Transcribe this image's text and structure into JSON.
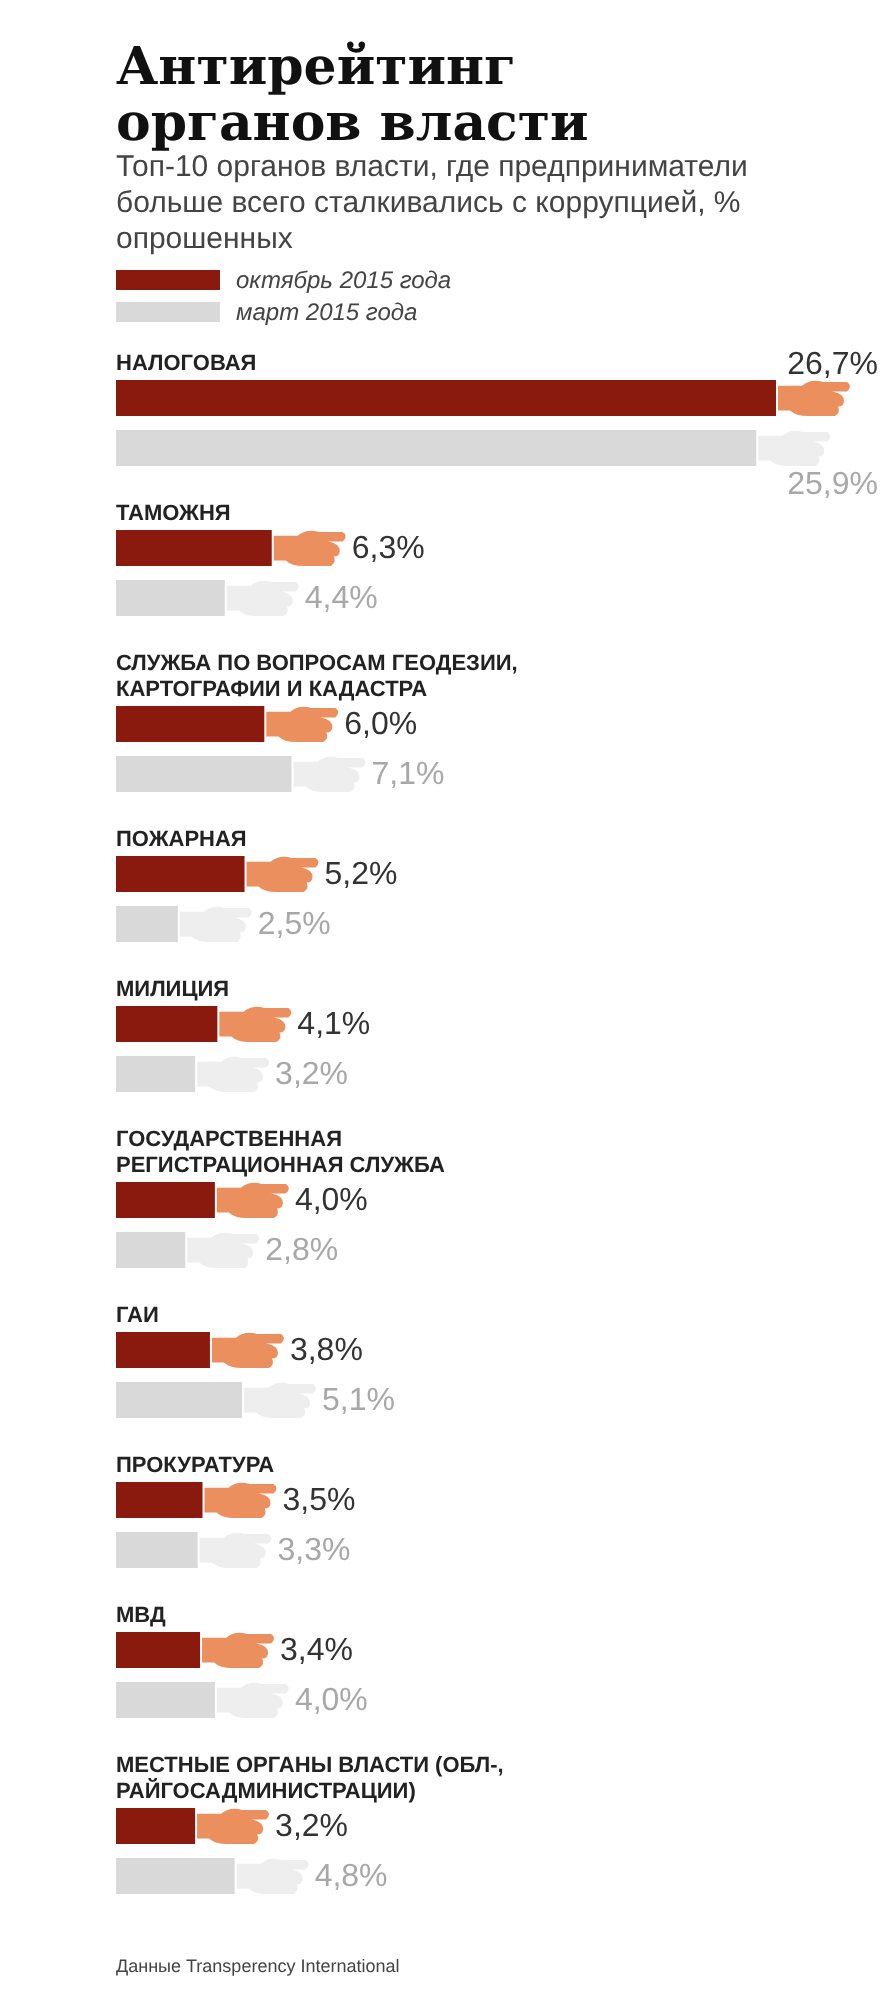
{
  "chart_data": {
    "type": "bar",
    "orientation": "horizontal",
    "title": "Антирейтинг органов власти",
    "subtitle": "Топ-10 органов власти, где предприниматели больше всего сталкивались с коррупцией, % опрошенных",
    "categories": [
      "НАЛОГОВАЯ",
      "ТАМОЖНЯ",
      "СЛУЖБА ПО ВОПРОСАМ ГЕОДЕЗИИ, КАРТОГРАФИИ И КАДАСТРА",
      "ПОЖАРНАЯ",
      "МИЛИЦИЯ",
      "ГОСУДАРСТВЕННАЯ РЕГИСТРАЦИОННАЯ СЛУЖБА",
      "ГАИ",
      "ПРОКУРАТУРА",
      "МВД",
      "МЕСТНЫЕ ОРГАНЫ ВЛАСТИ (ОБЛ-, РАЙГОСАДМИНИСТРАЦИИ)"
    ],
    "series": [
      {
        "name": "октябрь 2015 года",
        "color": "#8b1a0e",
        "values": [
          26.7,
          6.3,
          6.0,
          5.2,
          4.1,
          4.0,
          3.8,
          3.5,
          3.4,
          3.2
        ],
        "value_labels": [
          "26,7%",
          "6,3%",
          "6,0%",
          "5,2%",
          "4,1%",
          "4,0%",
          "3,8%",
          "3,5%",
          "3,4%",
          "3,2%"
        ]
      },
      {
        "name": "март 2015 года",
        "color": "#d9d9d9",
        "values": [
          25.9,
          4.4,
          7.1,
          2.5,
          3.2,
          2.8,
          5.1,
          3.3,
          4.0,
          4.8
        ],
        "value_labels": [
          "25,9%",
          "4,4%",
          "7,1%",
          "2,5%",
          "3,2%",
          "2,8%",
          "5,1%",
          "3,3%",
          "4,0%",
          "4,8%"
        ]
      }
    ],
    "relative": false,
    "xlim": [
      0,
      26.7
    ],
    "legend": "top left",
    "annotations": [
      "Данные Transperency International"
    ]
  }
}
